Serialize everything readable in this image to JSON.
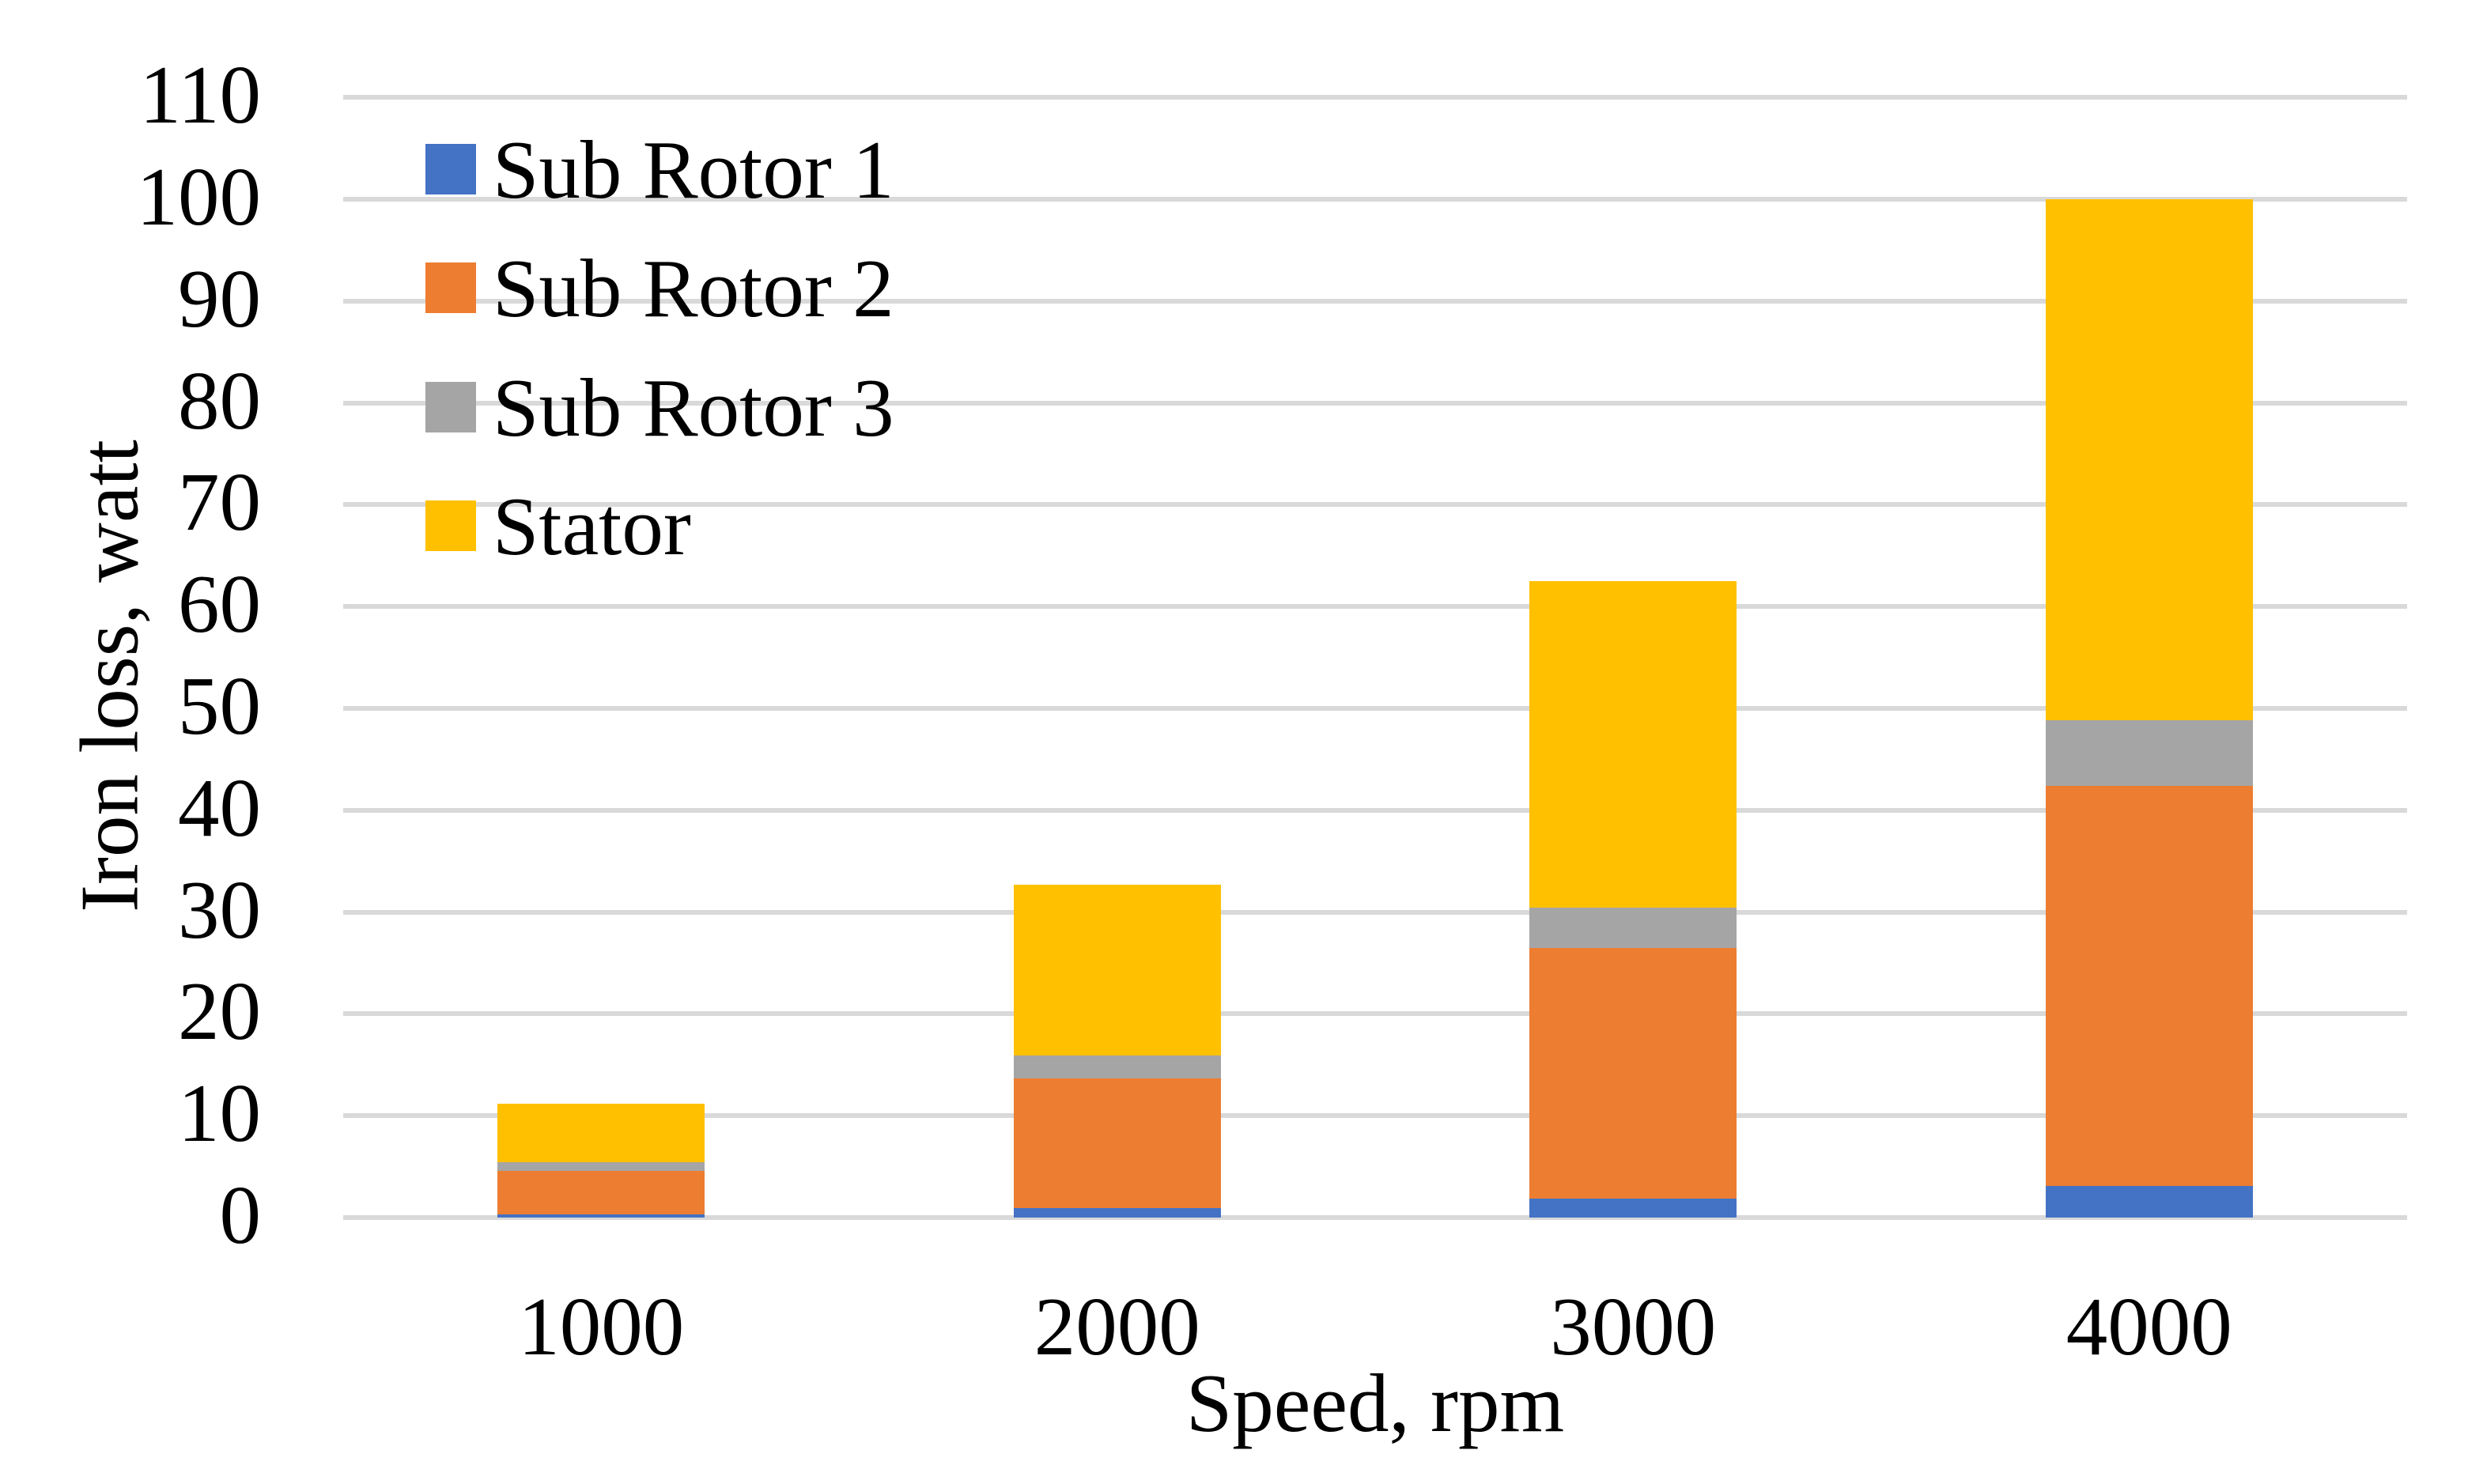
{
  "chart_data": {
    "type": "bar",
    "stacked": true,
    "title": "",
    "xlabel": "Speed, rpm",
    "ylabel": "Iron loss, watt",
    "categories": [
      "1000",
      "2000",
      "3000",
      "4000"
    ],
    "series": [
      {
        "name": "Sub Rotor 1",
        "color": "#4472C4",
        "values": [
          0.3,
          0.9,
          1.9,
          3.1
        ]
      },
      {
        "name": "Sub Rotor 2",
        "color": "#ED7D31",
        "values": [
          4.3,
          12.8,
          24.6,
          39.3
        ]
      },
      {
        "name": "Sub Rotor 3",
        "color": "#A5A5A5",
        "values": [
          0.8,
          2.2,
          3.9,
          6.4
        ]
      },
      {
        "name": "Stator",
        "color": "#FFC000",
        "values": [
          5.8,
          16.8,
          32.1,
          51.2
        ]
      }
    ],
    "stack_totals": [
      11.2,
      32.7,
      62.5,
      100.0
    ],
    "ylim": [
      0,
      110
    ],
    "y_ticks": [
      0,
      10,
      20,
      30,
      40,
      50,
      60,
      70,
      80,
      90,
      100,
      110
    ],
    "grid": true,
    "gridline_color": "#D9D9D9",
    "text_color": "#000000",
    "background_color": "#FFFFFF",
    "legend_position": "inside-top-left"
  }
}
